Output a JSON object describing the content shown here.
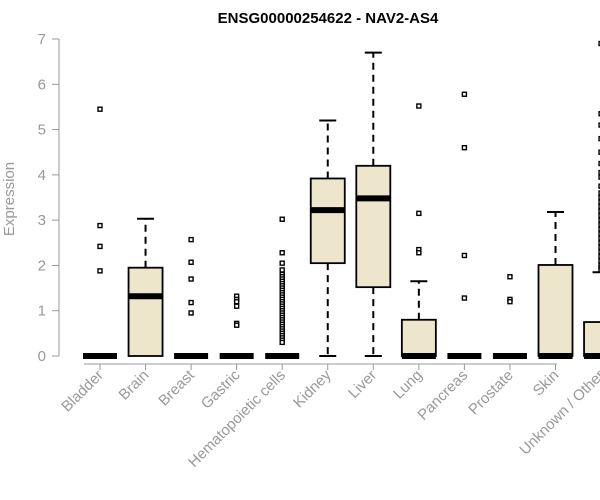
{
  "chart_data": {
    "type": "boxplot",
    "title": "ENSG00000254622 - NAV2-AS4",
    "ylabel": "Expression",
    "xlabel": "",
    "ylim": [
      0,
      7
    ],
    "yticks": [
      0,
      1,
      2,
      3,
      4,
      5,
      6,
      7
    ],
    "box_color": "#ede6cd",
    "categories": [
      "Bladder",
      "Brain",
      "Breast",
      "Gastric",
      "Hematopoietic cells",
      "Kidney",
      "Liver",
      "Lung",
      "Pancreas",
      "Prostate",
      "Skin",
      "Unknown / Other"
    ],
    "boxes": [
      {
        "min": 0,
        "q1": 0,
        "median": 0,
        "q3": 0,
        "max": 0,
        "outliers": [
          5.45,
          2.88,
          2.42,
          1.88
        ]
      },
      {
        "min": 0,
        "q1": 0,
        "median": 1.32,
        "q3": 1.95,
        "max": 3.03,
        "outliers": []
      },
      {
        "min": 0,
        "q1": 0,
        "median": 0,
        "q3": 0,
        "max": 0,
        "outliers": [
          2.57,
          2.07,
          1.7,
          1.18,
          0.95
        ]
      },
      {
        "min": 0,
        "q1": 0,
        "median": 0,
        "q3": 0,
        "max": 0,
        "outliers": [
          1.32,
          1.25,
          1.2,
          1.1,
          0.72,
          0.68
        ]
      },
      {
        "min": 0,
        "q1": 0,
        "median": 0,
        "q3": 0,
        "max": 0,
        "outliers": [
          3.02,
          2.28,
          2.05,
          1.9,
          1.8,
          1.75,
          1.7,
          1.65,
          1.6,
          1.55,
          1.5,
          1.45,
          1.4,
          1.35,
          1.3,
          1.25,
          1.2,
          1.15,
          1.1,
          1.05,
          1.0,
          0.95,
          0.9,
          0.85,
          0.8,
          0.75,
          0.7,
          0.65,
          0.6,
          0.55,
          0.5,
          0.45,
          0.4,
          0.35,
          0.3
        ]
      },
      {
        "min": 0,
        "q1": 2.05,
        "median": 3.22,
        "q3": 3.92,
        "max": 5.2,
        "outliers": []
      },
      {
        "min": 0,
        "q1": 1.52,
        "median": 3.48,
        "q3": 4.2,
        "max": 6.7,
        "outliers": []
      },
      {
        "min": 0,
        "q1": 0,
        "median": 0,
        "q3": 0.8,
        "max": 1.65,
        "outliers": [
          5.52,
          3.15,
          2.35,
          2.28
        ]
      },
      {
        "min": 0,
        "q1": 0,
        "median": 0,
        "q3": 0,
        "max": 0,
        "outliers": [
          5.78,
          4.6,
          2.22,
          1.28
        ]
      },
      {
        "min": 0,
        "q1": 0,
        "median": 0,
        "q3": 0,
        "max": 0,
        "outliers": [
          1.75,
          1.25,
          1.2
        ]
      },
      {
        "min": 0,
        "q1": 0,
        "median": 0,
        "q3": 2.01,
        "max": 3.18,
        "outliers": []
      },
      {
        "min": 0,
        "q1": 0,
        "median": 0,
        "q3": 0.75,
        "max": 1.85,
        "outliers": [
          6.9,
          5.35,
          5.1,
          4.8,
          4.5,
          4.25,
          4.05,
          3.95,
          3.75,
          3.6,
          3.5,
          3.4,
          3.3,
          3.2,
          3.1,
          3.0,
          2.9,
          2.8,
          2.7,
          2.6,
          2.5,
          2.4,
          2.3,
          2.2,
          2.1,
          2.0,
          1.95,
          1.9
        ]
      }
    ]
  }
}
